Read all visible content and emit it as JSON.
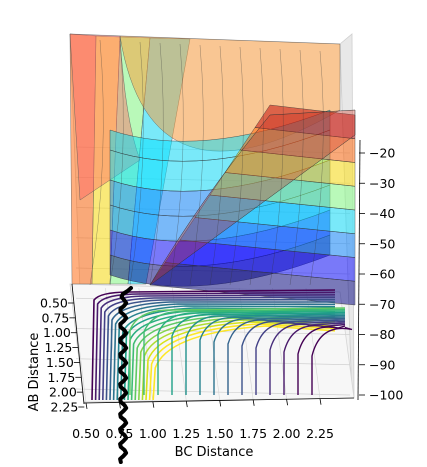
{
  "chart_data": {
    "type": "surface3d",
    "title": "",
    "x_axis": {
      "label": "BC Distance",
      "ticks": [
        "0.50",
        "0.75",
        "1.00",
        "1.25",
        "1.50",
        "1.75",
        "2.00",
        "2.25"
      ],
      "range": [
        0.5,
        2.3
      ]
    },
    "y_axis": {
      "label": "AB Distance",
      "ticks": [
        "0.50",
        "0.75",
        "1.00",
        "1.25",
        "1.50",
        "1.75",
        "2.00",
        "2.25"
      ],
      "range": [
        0.5,
        2.3
      ]
    },
    "z_axis": {
      "label": "",
      "ticks": [
        "−20",
        "−30",
        "−40",
        "−50",
        "−60",
        "−70",
        "−80",
        "−90",
        "−100"
      ],
      "values": [
        -20,
        -30,
        -40,
        -50,
        -60,
        -70,
        -80,
        -90,
        -100
      ],
      "range": [
        -102,
        -17
      ]
    },
    "surface": {
      "colormap": "jet",
      "alpha": 0.5,
      "color_bands": [
        "#000080",
        "#0000ff",
        "#0080ff",
        "#00e0ff",
        "#7fff7f",
        "#ffe000",
        "#ff6000",
        "#c00000"
      ]
    },
    "contour_floor": {
      "colormap": "viridis",
      "level_count": 18
    },
    "trajectory": {
      "color": "#000000",
      "style": "thick oscillating line along the AB Distance valley"
    },
    "grid": true
  }
}
